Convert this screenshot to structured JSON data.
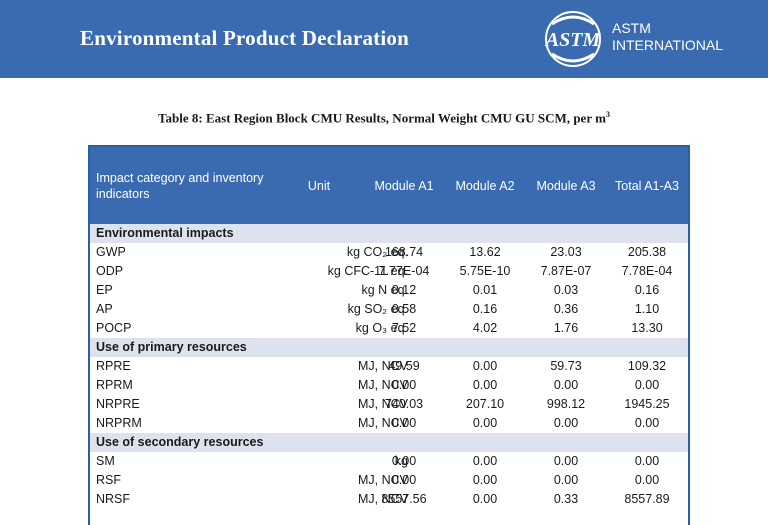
{
  "banner": {
    "title": "Environmental Product Declaration",
    "logo_text_line1": "ASTM",
    "logo_text_line2": "INTERNATIONAL",
    "logo_icon": "astm-logo",
    "color": "#3a6bb0"
  },
  "caption": {
    "text": "Table 8: East Region Block CMU Results, Normal Weight CMU GU SCM, per m",
    "superscript": "3"
  },
  "table": {
    "headers": {
      "category": "Impact category and inventory indicators",
      "unit": "Unit",
      "a1": "Module A1",
      "a2": "Module A2",
      "a3": "Module A3",
      "total": "Total A1-A3"
    },
    "sections": [
      {
        "title": "Environmental impacts",
        "rows": [
          {
            "name": "GWP",
            "unit": "kg CO₂ eq.",
            "a1": "168.74",
            "a2": "13.62",
            "a3": "23.03",
            "total": "205.38"
          },
          {
            "name": "ODP",
            "unit": "kg CFC-11 eq.",
            "a1": "7.77E-04",
            "a2": "5.75E-10",
            "a3": "7.87E-07",
            "total": "7.78E-04"
          },
          {
            "name": "EP",
            "unit": "kg N eq.",
            "a1": "0.12",
            "a2": "0.01",
            "a3": "0.03",
            "total": "0.16"
          },
          {
            "name": "AP",
            "unit": "kg SO₂ eq.",
            "a1": "0.58",
            "a2": "0.16",
            "a3": "0.36",
            "total": "1.10"
          },
          {
            "name": "POCP",
            "unit": "kg O₃ eq.",
            "a1": "7.52",
            "a2": "4.02",
            "a3": "1.76",
            "total": "13.30"
          }
        ]
      },
      {
        "title": "Use of primary resources",
        "rows": [
          {
            "name": "RPRE",
            "unit": "MJ, NCV",
            "a1": "49.59",
            "a2": "0.00",
            "a3": "59.73",
            "total": "109.32"
          },
          {
            "name": "RPRM",
            "unit": "MJ, NCV",
            "a1": "0.00",
            "a2": "0.00",
            "a3": "0.00",
            "total": "0.00"
          },
          {
            "name": "NRPRE",
            "unit": "MJ, NCV",
            "a1": "740.03",
            "a2": "207.10",
            "a3": "998.12",
            "total": "1945.25"
          },
          {
            "name": "NRPRM",
            "unit": "MJ, NCV",
            "a1": "0.00",
            "a2": "0.00",
            "a3": "0.00",
            "total": "0.00"
          }
        ]
      },
      {
        "title": "Use of secondary resources",
        "rows": [
          {
            "name": "SM",
            "unit": "kg",
            "a1": "0.00",
            "a2": "0.00",
            "a3": "0.00",
            "total": "0.00"
          },
          {
            "name": "RSF",
            "unit": "MJ, NCV",
            "a1": "0.00",
            "a2": "0.00",
            "a3": "0.00",
            "total": "0.00"
          },
          {
            "name": "NRSF",
            "unit": "MJ, NCV",
            "a1": "8557.56",
            "a2": "0.00",
            "a3": "0.33",
            "total": "8557.89"
          }
        ]
      }
    ]
  }
}
